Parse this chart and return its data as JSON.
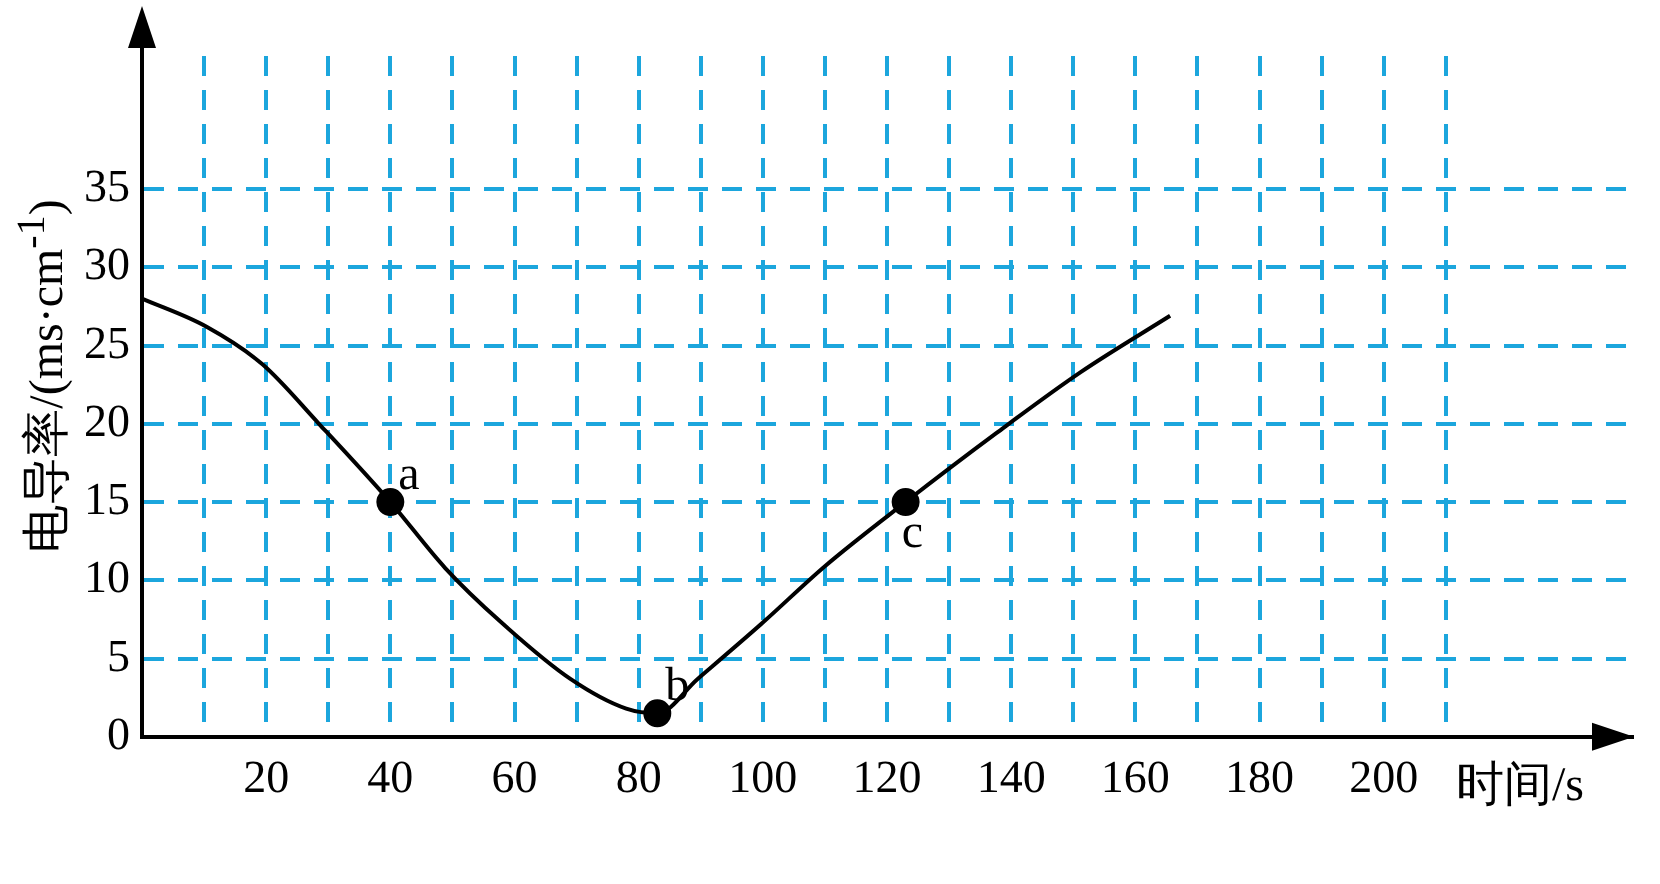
{
  "chart_data": {
    "type": "line",
    "xlabel": "时间/s",
    "ylabel": "电导率/(ms·cm$^{-1}$)",
    "xlim": [
      0,
      240
    ],
    "ylim": [
      0,
      43.5
    ],
    "xticks": [
      {
        "value": 10,
        "label": null
      },
      20,
      {
        "value": 30,
        "label": null
      },
      40,
      {
        "value": 50,
        "label": null
      },
      60,
      {
        "value": 70,
        "label": null
      },
      80,
      {
        "value": 90,
        "label": null
      },
      100,
      {
        "value": 110,
        "label": null
      },
      120,
      {
        "value": 130,
        "label": null
      },
      140,
      {
        "value": 150,
        "label": null
      },
      160,
      {
        "value": 170,
        "label": null
      },
      180,
      {
        "value": 190,
        "label": null
      },
      200,
      {
        "value": 210,
        "label": null
      }
    ],
    "yticks": [
      0,
      5,
      10,
      15,
      20,
      25,
      30,
      35
    ],
    "grid": true,
    "legend": false,
    "series": [
      {
        "color": "#000000",
        "marker": "none",
        "x": [
          0,
          10.4,
          19.4,
          28.5,
          40,
          48.8,
          57.9,
          69,
          78,
          83,
          89.5,
          100,
          110,
          123,
          137.6,
          151.2,
          165.6
        ],
        "values": [
          28,
          26.2,
          23.8,
          20,
          15,
          10.8,
          7.3,
          3.7,
          1.8,
          1.5,
          3.7,
          7.3,
          10.9,
          15,
          19.4,
          23.3,
          26.9
        ]
      },
      {
        "type": "scatter",
        "color": "#000000",
        "marker": "circle",
        "x": [
          40,
          83,
          123
        ],
        "values": [
          15,
          1.5,
          15
        ]
      }
    ],
    "annotations": [
      {
        "text": "a",
        "x": 40,
        "y": 15
      },
      {
        "text": "b",
        "x": 83,
        "y": 1.5
      },
      {
        "text": "c",
        "x": 123,
        "y": 15
      }
    ]
  }
}
